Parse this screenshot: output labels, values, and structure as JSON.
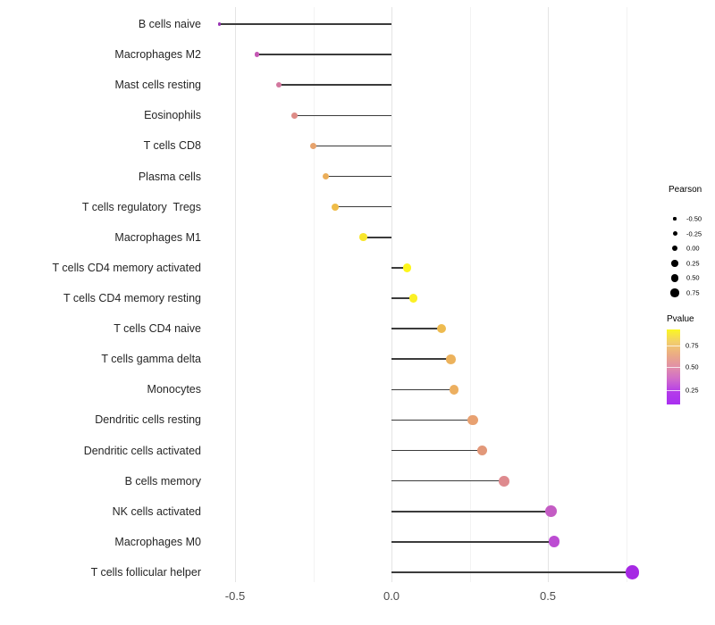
{
  "chart_data": {
    "type": "scatter",
    "style": "lollipop (segments from 0 to point; point size = Pearson, point color = Pvalue)",
    "title": "",
    "xlabel": "",
    "ylabel": "",
    "grid": "vertical only",
    "x_axis": {
      "ticks": [
        {
          "label": "-0.5",
          "value": -0.5
        },
        {
          "label": "0.0",
          "value": 0.0
        },
        {
          "label": "0.5",
          "value": 0.5
        }
      ],
      "minor_gridlines": [
        -0.25,
        0.25,
        0.75
      ],
      "range": [
        -0.586,
        0.829
      ]
    },
    "rows": [
      {
        "name": "B cells naive",
        "pearson": -0.55,
        "pvalue_est": 0.03,
        "color": "#9733B3",
        "size": 3.5
      },
      {
        "name": "Macrophages M2",
        "pearson": -0.43,
        "pvalue_est": 0.3,
        "color": "#C558B4",
        "size": 5.6
      },
      {
        "name": "Mast cells resting",
        "pearson": -0.36,
        "pvalue_est": 0.42,
        "color": "#D2779E",
        "size": 6.3
      },
      {
        "name": "Eosinophils",
        "pearson": -0.31,
        "pvalue_est": 0.5,
        "color": "#DE8C87",
        "size": 6.8
      },
      {
        "name": "T cells CD8",
        "pearson": -0.25,
        "pvalue_est": 0.6,
        "color": "#E7A36C",
        "size": 7.4
      },
      {
        "name": "Plasma cells",
        "pearson": -0.21,
        "pvalue_est": 0.66,
        "color": "#EBAE59",
        "size": 7.7
      },
      {
        "name": "T cells regulatory  Tregs",
        "pearson": -0.18,
        "pvalue_est": 0.72,
        "color": "#EFBC48",
        "size": 8.0
      },
      {
        "name": "Macrophages M1",
        "pearson": -0.09,
        "pvalue_est": 0.85,
        "color": "#F8E62B",
        "size": 8.7
      },
      {
        "name": "T cells CD4 memory activated",
        "pearson": 0.05,
        "pvalue_est": 0.92,
        "color": "#FDF61B",
        "size": 9.6
      },
      {
        "name": "T cells CD4 memory resting",
        "pearson": 0.07,
        "pvalue_est": 0.9,
        "color": "#FBF024",
        "size": 9.8
      },
      {
        "name": "T cells CD4 naive",
        "pearson": 0.16,
        "pvalue_est": 0.7,
        "color": "#EEBB50",
        "size": 10.4
      },
      {
        "name": "T cells gamma delta",
        "pearson": 0.19,
        "pvalue_est": 0.68,
        "color": "#ECB25C",
        "size": 10.6
      },
      {
        "name": "Monocytes",
        "pearson": 0.2,
        "pvalue_est": 0.67,
        "color": "#ECAF60",
        "size": 10.7
      },
      {
        "name": "Dendritic cells resting",
        "pearson": 0.26,
        "pvalue_est": 0.6,
        "color": "#E8A171",
        "size": 11.1
      },
      {
        "name": "Dendritic cells activated",
        "pearson": 0.29,
        "pvalue_est": 0.55,
        "color": "#E29879",
        "size": 11.3
      },
      {
        "name": "B cells memory",
        "pearson": 0.36,
        "pvalue_est": 0.48,
        "color": "#DE8A8E",
        "size": 11.8
      },
      {
        "name": "NK cells activated",
        "pearson": 0.51,
        "pvalue_est": 0.2,
        "color": "#C45CC4",
        "size": 12.8
      },
      {
        "name": "Macrophages M0",
        "pearson": 0.52,
        "pvalue_est": 0.19,
        "color": "#BC4CD2",
        "size": 12.9
      },
      {
        "name": "T cells follicular helper",
        "pearson": 0.77,
        "pvalue_est": 0.05,
        "color": "#A629E4",
        "size": 15.5
      }
    ],
    "legend_size": {
      "title": "Pearson",
      "items": [
        {
          "label": "-0.50",
          "diameter": 3.2
        },
        {
          "label": "-0.25",
          "diameter": 5.0
        },
        {
          "label": "0.00",
          "diameter": 6.6
        },
        {
          "label": "0.25",
          "diameter": 7.6
        },
        {
          "label": "0.50",
          "diameter": 8.4
        },
        {
          "label": "0.75",
          "diameter": 9.2
        }
      ],
      "dot_color": "#000000"
    },
    "legend_color": {
      "title": "Pvalue",
      "tick_labels": [
        "0.75",
        "0.50",
        "0.25"
      ],
      "gradient_top_to_bottom": [
        "#FBF722",
        "#F2CE6B",
        "#EBAC84",
        "#E18FA8",
        "#D06BCB",
        "#B43BEA",
        "#A92FF0"
      ]
    },
    "colors": {
      "segment": "#3b3b3b",
      "major_gridline": "#e4e4e4",
      "minor_gridline": "#f3f3f3",
      "axis_text": "#4d4d4d",
      "background": "#ffffff"
    }
  }
}
